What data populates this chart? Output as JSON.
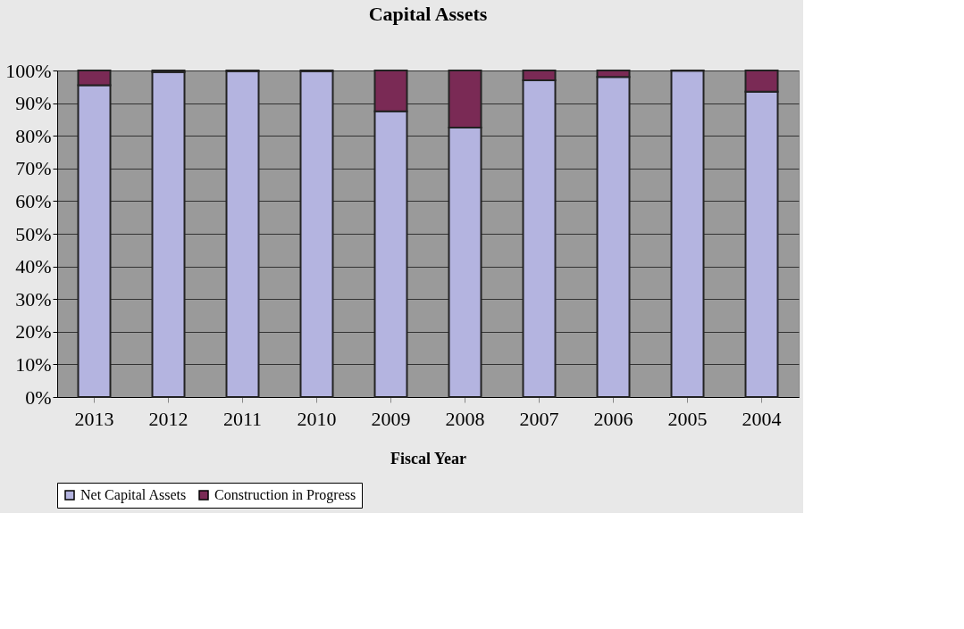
{
  "chart_data": {
    "type": "bar",
    "title": "Capital Assets",
    "xlabel": "Fiscal Year",
    "stacked": true,
    "categories": [
      "2013",
      "2012",
      "2011",
      "2010",
      "2009",
      "2008",
      "2007",
      "2006",
      "2005",
      "2004"
    ],
    "series": [
      {
        "name": "Net Capital Assets",
        "color": "#b4b4e0",
        "values": [
          95.5,
          99.5,
          99.8,
          99.8,
          87.5,
          82.5,
          97,
          98,
          99.9,
          93.5
        ]
      },
      {
        "name": "Construction in Progress",
        "color": "#7a2a55",
        "values": [
          4.5,
          0.5,
          0.2,
          0.2,
          12.5,
          17.5,
          3,
          2,
          0.1,
          6.5
        ]
      }
    ],
    "ylim": [
      0,
      100
    ],
    "yticks": [
      {
        "value": 0,
        "label": "0%"
      },
      {
        "value": 10,
        "label": "10%"
      },
      {
        "value": 20,
        "label": "20%"
      },
      {
        "value": 30,
        "label": "30%"
      },
      {
        "value": 40,
        "label": "40%"
      },
      {
        "value": 50,
        "label": "50%"
      },
      {
        "value": 60,
        "label": "60%"
      },
      {
        "value": 70,
        "label": "70%"
      },
      {
        "value": 80,
        "label": "80%"
      },
      {
        "value": 90,
        "label": "90%"
      },
      {
        "value": 100,
        "label": "100%"
      }
    ],
    "grid": "y",
    "legend": "bottom"
  }
}
